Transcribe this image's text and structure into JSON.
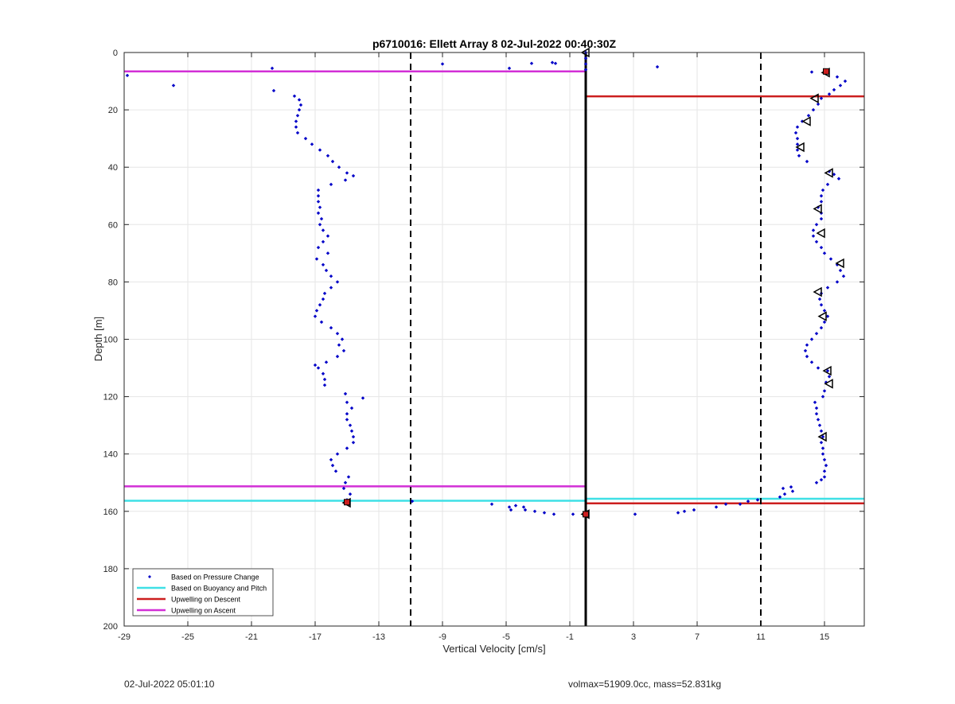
{
  "footer": {
    "timestamp": "02-Jul-2022 05:01:10",
    "info": "volmax=51909.0cc, mass=52.831kg"
  },
  "chart_data": {
    "type": "scatter",
    "title": "p6710016: Ellett Array 8 02-Jul-2022 00:40:30Z",
    "xlabel": "Vertical Velocity [cm/s]",
    "ylabel": "Depth [m]",
    "xlim": [
      -29,
      17.5
    ],
    "ylim": [
      0,
      200
    ],
    "y_reversed": true,
    "grid": true,
    "legend_position": "bottom-left",
    "xticks": [
      -29,
      -25,
      -21,
      -17,
      -13,
      -9,
      -5,
      -1,
      3,
      7,
      11,
      15
    ],
    "yticks": [
      0,
      20,
      40,
      60,
      80,
      100,
      120,
      140,
      160,
      180,
      200
    ],
    "colors": {
      "pressure": "#0000c8",
      "buoyancy": "#3fe0e6",
      "descent": "#cc1f1f",
      "ascent": "#d22fd6",
      "axis": "#262626",
      "grid": "#e6e6e6"
    },
    "legend": [
      {
        "label": "Based on Pressure Change",
        "style": "dot",
        "color": "#0000c8"
      },
      {
        "label": "Based on Buoyancy and Pitch",
        "style": "line",
        "color": "#3fe0e6"
      },
      {
        "label": "Upwelling on Descent",
        "style": "line",
        "color": "#cc1f1f"
      },
      {
        "label": "Upwelling on Ascent",
        "style": "line",
        "color": "#d22fd6"
      }
    ],
    "vertical_lines": [
      {
        "x": -11,
        "style": "dashed"
      },
      {
        "x": 11,
        "style": "dashed"
      },
      {
        "x": 0,
        "style": "solid"
      }
    ],
    "series": [
      {
        "name": "Based on Pressure Change",
        "style": "dot",
        "points": [
          [
            -28.8,
            8
          ],
          [
            -25.9,
            11.5
          ],
          [
            -19.7,
            5.5
          ],
          [
            -19.6,
            13.3
          ],
          [
            -18.3,
            15.2
          ],
          [
            -18.0,
            16.5
          ],
          [
            -17.9,
            18.3
          ],
          [
            -18.0,
            20
          ],
          [
            -18.1,
            22
          ],
          [
            -18.2,
            24
          ],
          [
            -18.2,
            26
          ],
          [
            -18.1,
            28
          ],
          [
            -17.6,
            30
          ],
          [
            -17.2,
            32
          ],
          [
            -16.7,
            34
          ],
          [
            -16.2,
            36
          ],
          [
            -15.9,
            38
          ],
          [
            -15.5,
            40
          ],
          [
            -15.0,
            42
          ],
          [
            -14.6,
            43
          ],
          [
            -15.1,
            44.5
          ],
          [
            -16.0,
            46
          ],
          [
            -16.8,
            48
          ],
          [
            -16.8,
            50
          ],
          [
            -16.8,
            52
          ],
          [
            -16.7,
            54
          ],
          [
            -16.8,
            56
          ],
          [
            -16.6,
            58
          ],
          [
            -16.7,
            60
          ],
          [
            -16.5,
            62
          ],
          [
            -16.2,
            64
          ],
          [
            -16.5,
            66
          ],
          [
            -16.8,
            68
          ],
          [
            -16.2,
            70
          ],
          [
            -16.9,
            72
          ],
          [
            -16.5,
            74
          ],
          [
            -16.3,
            76
          ],
          [
            -16.0,
            78
          ],
          [
            -15.6,
            80
          ],
          [
            -16.0,
            82
          ],
          [
            -16.4,
            84
          ],
          [
            -16.5,
            86
          ],
          [
            -16.7,
            88
          ],
          [
            -16.9,
            90
          ],
          [
            -17.0,
            92
          ],
          [
            -16.6,
            94
          ],
          [
            -16.0,
            96
          ],
          [
            -15.6,
            98
          ],
          [
            -15.3,
            100
          ],
          [
            -15.5,
            102
          ],
          [
            -15.2,
            104
          ],
          [
            -15.6,
            106
          ],
          [
            -16.3,
            108
          ],
          [
            -17.0,
            109
          ],
          [
            -16.8,
            110
          ],
          [
            -16.5,
            112
          ],
          [
            -16.4,
            114
          ],
          [
            -16.4,
            116
          ],
          [
            -15.1,
            119
          ],
          [
            -14.0,
            120.5
          ],
          [
            -15.0,
            122
          ],
          [
            -14.7,
            124
          ],
          [
            -15.0,
            126
          ],
          [
            -15.0,
            128
          ],
          [
            -14.8,
            130
          ],
          [
            -14.7,
            132
          ],
          [
            -14.6,
            134
          ],
          [
            -14.6,
            136
          ],
          [
            -15.0,
            138
          ],
          [
            -15.6,
            140
          ],
          [
            -16.0,
            142
          ],
          [
            -15.9,
            144
          ],
          [
            -15.7,
            146
          ],
          [
            -14.9,
            148
          ],
          [
            -15.1,
            150
          ],
          [
            -15.2,
            152
          ],
          [
            -14.8,
            154
          ],
          [
            -15.0,
            156
          ],
          [
            -10.9,
            156.5
          ],
          [
            -5.9,
            157.5
          ],
          [
            -4.8,
            158.5
          ],
          [
            -4.4,
            158
          ],
          [
            -3.9,
            158.5
          ],
          [
            -4.7,
            159.5
          ],
          [
            -3.8,
            159.5
          ],
          [
            -3.2,
            160
          ],
          [
            -2.6,
            160.5
          ],
          [
            -2.0,
            161
          ],
          [
            -0.8,
            161
          ],
          [
            -9.0,
            4
          ],
          [
            -4.8,
            5.5
          ],
          [
            -3.4,
            3.8
          ],
          [
            -2.1,
            3.5
          ],
          [
            -1.9,
            3.8
          ],
          [
            3.1,
            161
          ],
          [
            5.8,
            160.5
          ],
          [
            6.2,
            160
          ],
          [
            6.8,
            159.5
          ],
          [
            8.2,
            158.5
          ],
          [
            8.8,
            157.5
          ],
          [
            9.7,
            157.5
          ],
          [
            10.2,
            156.5
          ],
          [
            10.8,
            156
          ],
          [
            12.2,
            155
          ],
          [
            12.5,
            154
          ],
          [
            13.0,
            153
          ],
          [
            12.4,
            152
          ],
          [
            12.9,
            151.5
          ],
          [
            14.5,
            150
          ],
          [
            14.8,
            149
          ],
          [
            15.0,
            148
          ],
          [
            15.0,
            146
          ],
          [
            15.1,
            144
          ],
          [
            15.0,
            142
          ],
          [
            14.9,
            140
          ],
          [
            14.9,
            138
          ],
          [
            14.8,
            136
          ],
          [
            14.9,
            134
          ],
          [
            14.8,
            132
          ],
          [
            14.7,
            130
          ],
          [
            14.6,
            128
          ],
          [
            14.5,
            126
          ],
          [
            14.5,
            124
          ],
          [
            14.4,
            122
          ],
          [
            14.9,
            120
          ],
          [
            15.0,
            118
          ],
          [
            15.1,
            115
          ],
          [
            15.3,
            113
          ],
          [
            15.2,
            111
          ],
          [
            14.6,
            110
          ],
          [
            14.2,
            108
          ],
          [
            13.9,
            106
          ],
          [
            13.8,
            104
          ],
          [
            13.9,
            102
          ],
          [
            14.2,
            100
          ],
          [
            14.5,
            98
          ],
          [
            14.8,
            96
          ],
          [
            15.0,
            94
          ],
          [
            15.2,
            92
          ],
          [
            15.0,
            90
          ],
          [
            14.8,
            88
          ],
          [
            14.7,
            86
          ],
          [
            14.8,
            84
          ],
          [
            15.2,
            82
          ],
          [
            15.8,
            80
          ],
          [
            16.2,
            78
          ],
          [
            16.0,
            76
          ],
          [
            15.8,
            74
          ],
          [
            15.4,
            72
          ],
          [
            15.0,
            70
          ],
          [
            14.8,
            68
          ],
          [
            14.5,
            66
          ],
          [
            14.3,
            64
          ],
          [
            14.3,
            62
          ],
          [
            14.5,
            60
          ],
          [
            14.8,
            58
          ],
          [
            14.8,
            56
          ],
          [
            14.6,
            54
          ],
          [
            14.8,
            52
          ],
          [
            14.8,
            50
          ],
          [
            14.9,
            48
          ],
          [
            15.2,
            46
          ],
          [
            15.9,
            44
          ],
          [
            15.6,
            42.5
          ],
          [
            15.3,
            41.5
          ],
          [
            13.9,
            38
          ],
          [
            13.4,
            36
          ],
          [
            13.3,
            34
          ],
          [
            13.3,
            32
          ],
          [
            13.3,
            30
          ],
          [
            13.2,
            28
          ],
          [
            13.3,
            26
          ],
          [
            13.6,
            24
          ],
          [
            14.0,
            22
          ],
          [
            14.3,
            20
          ],
          [
            14.6,
            18
          ],
          [
            14.8,
            16
          ],
          [
            15.3,
            14.5
          ],
          [
            15.6,
            13
          ],
          [
            16.0,
            11.5
          ],
          [
            16.3,
            10
          ],
          [
            15.8,
            8.5
          ],
          [
            15.1,
            7
          ],
          [
            14.2,
            6.8
          ],
          [
            4.5,
            5
          ],
          [
            0,
            0
          ],
          [
            0,
            2
          ],
          [
            0,
            4
          ],
          [
            0,
            6
          ]
        ]
      },
      {
        "name": "triangle markers",
        "style": "triangle",
        "points": [
          [
            -15.0,
            157
          ],
          [
            0,
            0
          ],
          [
            15.1,
            7
          ],
          [
            14.4,
            16
          ],
          [
            13.9,
            24
          ],
          [
            13.5,
            33
          ],
          [
            15.3,
            42
          ],
          [
            14.6,
            54.5
          ],
          [
            14.8,
            63
          ],
          [
            16.0,
            73.5
          ],
          [
            14.6,
            83.5
          ],
          [
            14.9,
            92
          ],
          [
            15.2,
            111
          ],
          [
            15.3,
            115.5
          ],
          [
            14.9,
            134
          ],
          [
            0,
            161
          ]
        ]
      },
      {
        "name": "Based on Buoyancy and Pitch",
        "style": "hline",
        "segments": [
          [
            -29,
            0,
            156.3
          ],
          [
            0,
            17.5,
            155.6
          ]
        ]
      },
      {
        "name": "Upwelling on Descent",
        "style": "hline",
        "segments": [
          [
            0,
            17.5,
            15.3
          ],
          [
            0,
            17.5,
            157.2
          ]
        ]
      },
      {
        "name": "Upwelling on Ascent",
        "style": "hline",
        "segments": [
          [
            -29,
            0,
            6.6
          ],
          [
            -29,
            0,
            151.3
          ]
        ]
      },
      {
        "name": "red square markers",
        "style": "square",
        "points": [
          [
            15.1,
            6.6
          ],
          [
            -15.0,
            156.8
          ],
          [
            0,
            161
          ]
        ]
      }
    ]
  }
}
